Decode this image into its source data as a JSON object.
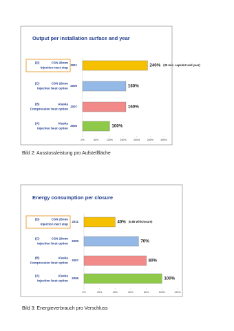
{
  "chart_data": [
    {
      "type": "bar",
      "orientation": "horizontal",
      "title": "Output per installation surface and year",
      "categories": [
        "2011",
        "2009",
        "2007",
        "2006"
      ],
      "category_labels": [
        [
          "(D)",
          "CSN 26mm",
          "Injection next step"
        ],
        [
          "(C)",
          "CSN 26mm",
          "Injection best option"
        ],
        [
          "(B)",
          "Alaska",
          "Compression best option"
        ],
        [
          "(A)",
          "Alaska",
          "Injection best option"
        ]
      ],
      "label_box_colors": [
        "#e8a33d",
        "#b0b0b0",
        "#b0b0b0",
        "#b0b0b0"
      ],
      "values": [
        240,
        160,
        160,
        100
      ],
      "value_labels": [
        "240%",
        "160%",
        "160%",
        "100%"
      ],
      "colors": [
        "#f5c000",
        "#95b9e6",
        "#f28a8a",
        "#8fc94a"
      ],
      "annotation": "(35 mio. caps/m2 and year)",
      "xlim": [
        0,
        300
      ],
      "xticks": [
        {
          "value": 0,
          "label": "0%"
        },
        {
          "value": 50,
          "label": "50%"
        },
        {
          "value": 100,
          "label": "100%"
        },
        {
          "value": 150,
          "label": "150%"
        },
        {
          "value": 200,
          "label": "200%"
        },
        {
          "value": 250,
          "label": "250%"
        },
        {
          "value": 300,
          "label": "300%"
        }
      ],
      "caption": "Bild 2: Ausstossleistung pro Aufstellfläche"
    },
    {
      "type": "bar",
      "orientation": "horizontal",
      "title": "Energy consumption per closure",
      "categories": [
        "2011",
        "2009",
        "2007",
        "2006"
      ],
      "category_labels": [
        [
          "(D)",
          "CSN 26mm",
          "Injection next step"
        ],
        [
          "(C)",
          "CSN 26mm",
          "Injection best option"
        ],
        [
          "(B)",
          "Alaska",
          "Compression best option"
        ],
        [
          "(A)",
          "Alaska",
          "Injection best option"
        ]
      ],
      "label_box_colors": [
        "#e8a33d",
        "#b0b0b0",
        "#b0b0b0",
        "#b0b0b0"
      ],
      "values": [
        40,
        70,
        80,
        100
      ],
      "value_labels": [
        "40%",
        "70%",
        "80%",
        "100%"
      ],
      "colors": [
        "#f5c000",
        "#95b9e6",
        "#f28a8a",
        "#8fc94a"
      ],
      "annotation": "(0.85 Wh/closure)",
      "xlim": [
        0,
        120
      ],
      "xticks": [
        {
          "value": 0,
          "label": "0%"
        },
        {
          "value": 20,
          "label": "20%"
        },
        {
          "value": 40,
          "label": "40%"
        },
        {
          "value": 60,
          "label": "60%"
        },
        {
          "value": 80,
          "label": "80%"
        },
        {
          "value": 100,
          "label": "100%"
        },
        {
          "value": 120,
          "label": "120%"
        }
      ],
      "caption": "Bild 3: Energieverbrauch pro Verschluss"
    }
  ]
}
